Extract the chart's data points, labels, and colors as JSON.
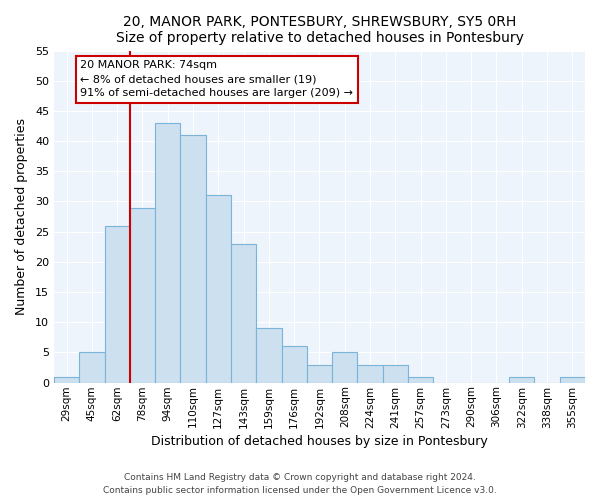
{
  "title": "20, MANOR PARK, PONTESBURY, SHREWSBURY, SY5 0RH",
  "subtitle": "Size of property relative to detached houses in Pontesbury",
  "xlabel": "Distribution of detached houses by size in Pontesbury",
  "ylabel": "Number of detached properties",
  "bin_labels": [
    "29sqm",
    "45sqm",
    "62sqm",
    "78sqm",
    "94sqm",
    "110sqm",
    "127sqm",
    "143sqm",
    "159sqm",
    "176sqm",
    "192sqm",
    "208sqm",
    "224sqm",
    "241sqm",
    "257sqm",
    "273sqm",
    "290sqm",
    "306sqm",
    "322sqm",
    "338sqm",
    "355sqm"
  ],
  "bar_heights": [
    1,
    5,
    26,
    29,
    43,
    41,
    31,
    23,
    9,
    6,
    3,
    5,
    3,
    3,
    1,
    0,
    0,
    0,
    1,
    0,
    1
  ],
  "bar_color": "#cce0f0",
  "bar_edge_color": "#7ab4d8",
  "vline_color": "#cc0000",
  "ylim": [
    0,
    55
  ],
  "yticks": [
    0,
    5,
    10,
    15,
    20,
    25,
    30,
    35,
    40,
    45,
    50,
    55
  ],
  "annotation_title": "20 MANOR PARK: 74sqm",
  "annotation_line1": "← 8% of detached houses are smaller (19)",
  "annotation_line2": "91% of semi-detached houses are larger (209) →",
  "annotation_box_color": "#ffffff",
  "annotation_box_edge": "#cc0000",
  "footer1": "Contains HM Land Registry data © Crown copyright and database right 2024.",
  "footer2": "Contains public sector information licensed under the Open Government Licence v3.0.",
  "bg_color": "#eef4fb"
}
